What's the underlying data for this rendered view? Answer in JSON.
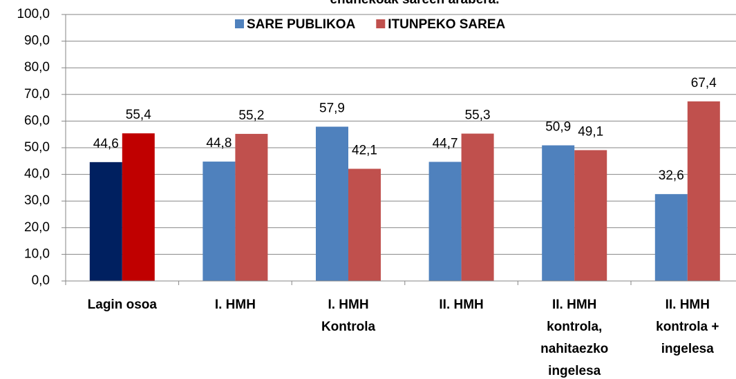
{
  "chart_data": {
    "type": "bar",
    "title": "ehunekoak sareen arabera.",
    "categories": [
      [
        "Lagin osoa"
      ],
      [
        "I. HMH"
      ],
      [
        "I. HMH",
        "Kontrola"
      ],
      [
        "II. HMH"
      ],
      [
        "II. HMH",
        "kontrola,",
        "nahitaezko",
        "ingelesa"
      ],
      [
        "II. HMH",
        "kontrola +",
        "ingelesa"
      ]
    ],
    "series": [
      {
        "name": "SARE PUBLIKOA",
        "color": "#4f81bd",
        "colors": [
          "#002060",
          "#4f81bd",
          "#4f81bd",
          "#4f81bd",
          "#4f81bd",
          "#4f81bd"
        ],
        "values": [
          44.6,
          44.8,
          57.9,
          44.7,
          50.9,
          32.6
        ],
        "value_labels": [
          "44,6",
          "44,8",
          "57,9",
          "44,7",
          "50,9",
          "32,6"
        ]
      },
      {
        "name": "ITUNPEKO SAREA",
        "color": "#c0504d",
        "colors": [
          "#c00000",
          "#c0504d",
          "#c0504d",
          "#c0504d",
          "#c0504d",
          "#c0504d"
        ],
        "values": [
          55.4,
          55.2,
          42.1,
          55.3,
          49.1,
          67.4
        ],
        "value_labels": [
          "55,4",
          "55,2",
          "42,1",
          "55,3",
          "49,1",
          "67,4"
        ]
      }
    ],
    "ylim": [
      0,
      100
    ],
    "yticks": [
      {
        "value": 0,
        "label": "0,0"
      },
      {
        "value": 10,
        "label": "10,0"
      },
      {
        "value": 20,
        "label": "20,0"
      },
      {
        "value": 30,
        "label": "30,0"
      },
      {
        "value": 40,
        "label": "40,0"
      },
      {
        "value": 50,
        "label": "50,0"
      },
      {
        "value": 60,
        "label": "60,0"
      },
      {
        "value": 70,
        "label": "70,0"
      },
      {
        "value": 80,
        "label": "80,0"
      },
      {
        "value": 90,
        "label": "90,0"
      },
      {
        "value": 100,
        "label": "100,0"
      }
    ],
    "grid": true,
    "legend": "top"
  }
}
